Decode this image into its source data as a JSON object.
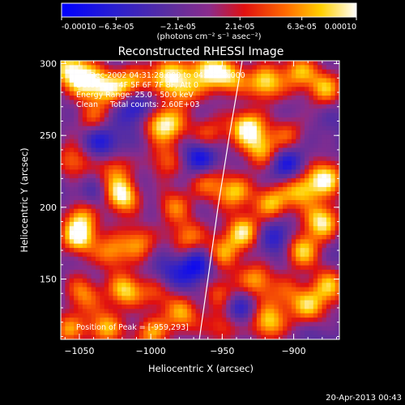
{
  "chart_data": {
    "type": "heatmap",
    "title": "Reconstructed RHESSI Image",
    "xlabel": "Heliocentric X (arcsec)",
    "ylabel": "Heliocentric Y (arcsec)",
    "xlim": [
      -1063,
      -868
    ],
    "ylim": [
      108,
      302
    ],
    "x_ticks": [
      -1050,
      -1000,
      -950,
      -900
    ],
    "y_ticks": [
      150,
      200,
      250,
      300
    ],
    "colorbar": {
      "min": -0.0001,
      "max": 0.0001,
      "ticks": [
        -0.0001,
        -6.3e-05,
        -2.1e-05,
        2.1e-05,
        6.3e-05,
        0.0001
      ],
      "tick_labels": [
        "-0.00010",
        "−6.3e-05",
        "−2.1e-05",
        "2.1e-05",
        "6.3e-05",
        "0.00010"
      ],
      "unit_label": "(photons cm⁻² s⁻¹ asec⁻²)",
      "colormap": [
        "#0000ff",
        "#5a2ea0",
        "#8a2c8c",
        "#e01010",
        "#ff6a00",
        "#ffd000",
        "#ffffff"
      ]
    },
    "info_lines": [
      "2-Dec-2002 04:31:28.000 to 04:35:28.000",
      "Detectors: 4F 5F 6F 7F 8F, Att 0",
      "Energy Range: 25.0 - 50.0 keV",
      "Clean     Total counts: 2.60E+03"
    ],
    "peak_label": "Position of Peak = [-959,293]",
    "limb_curve": [
      [
        -966,
        108
      ],
      [
        -960,
        150
      ],
      [
        -953,
        200
      ],
      [
        -945,
        250
      ],
      [
        -936,
        302
      ]
    ],
    "blobs": [
      {
        "x": -1058,
        "y": 297,
        "v": 0.9
      },
      {
        "x": -1046,
        "y": 287,
        "v": 0.85
      },
      {
        "x": -1030,
        "y": 283,
        "v": 0.7
      },
      {
        "x": -1012,
        "y": 286,
        "v": 0.75
      },
      {
        "x": -990,
        "y": 293,
        "v": 0.8
      },
      {
        "x": -978,
        "y": 282,
        "v": 0.7
      },
      {
        "x": -960,
        "y": 296,
        "v": 0.9
      },
      {
        "x": -944,
        "y": 290,
        "v": 0.8
      },
      {
        "x": -920,
        "y": 286,
        "v": 0.85
      },
      {
        "x": -896,
        "y": 295,
        "v": 0.75
      },
      {
        "x": -878,
        "y": 283,
        "v": 0.8
      },
      {
        "x": -932,
        "y": 256,
        "v": 1.0
      },
      {
        "x": -922,
        "y": 240,
        "v": 0.7
      },
      {
        "x": -995,
        "y": 260,
        "v": 0.65
      },
      {
        "x": -984,
        "y": 256,
        "v": 0.6
      },
      {
        "x": -1055,
        "y": 232,
        "v": 0.6
      },
      {
        "x": -1025,
        "y": 228,
        "v": 0.6
      },
      {
        "x": -990,
        "y": 232,
        "v": 0.5
      },
      {
        "x": -1020,
        "y": 208,
        "v": 1.0
      },
      {
        "x": -1048,
        "y": 196,
        "v": 0.7
      },
      {
        "x": -985,
        "y": 200,
        "v": 0.6
      },
      {
        "x": -960,
        "y": 218,
        "v": 0.6
      },
      {
        "x": -942,
        "y": 210,
        "v": 0.8
      },
      {
        "x": -915,
        "y": 203,
        "v": 0.7
      },
      {
        "x": -895,
        "y": 212,
        "v": 0.8
      },
      {
        "x": -878,
        "y": 220,
        "v": 0.9
      },
      {
        "x": -880,
        "y": 190,
        "v": 1.0
      },
      {
        "x": -895,
        "y": 170,
        "v": 0.8
      },
      {
        "x": -1050,
        "y": 180,
        "v": 1.0
      },
      {
        "x": -1028,
        "y": 168,
        "v": 0.7
      },
      {
        "x": -1008,
        "y": 176,
        "v": 0.6
      },
      {
        "x": -975,
        "y": 178,
        "v": 0.7
      },
      {
        "x": -950,
        "y": 168,
        "v": 0.6
      },
      {
        "x": -935,
        "y": 183,
        "v": 0.9
      },
      {
        "x": -925,
        "y": 150,
        "v": 0.7
      },
      {
        "x": -952,
        "y": 140,
        "v": 0.6
      },
      {
        "x": -1018,
        "y": 142,
        "v": 0.9
      },
      {
        "x": -1048,
        "y": 140,
        "v": 0.6
      },
      {
        "x": -995,
        "y": 142,
        "v": 0.6
      },
      {
        "x": -1058,
        "y": 115,
        "v": 0.7
      },
      {
        "x": -1032,
        "y": 116,
        "v": 0.7
      },
      {
        "x": -1000,
        "y": 112,
        "v": 0.75
      },
      {
        "x": -978,
        "y": 125,
        "v": 0.65
      },
      {
        "x": -948,
        "y": 118,
        "v": 0.7
      },
      {
        "x": -918,
        "y": 120,
        "v": 0.8
      },
      {
        "x": -890,
        "y": 130,
        "v": 0.75
      },
      {
        "x": -875,
        "y": 145,
        "v": 0.7
      },
      {
        "x": -1040,
        "y": 262,
        "v": 0.55
      },
      {
        "x": -960,
        "y": 250,
        "v": 0.55
      },
      {
        "x": -905,
        "y": 250,
        "v": 0.5
      },
      {
        "x": -905,
        "y": 140,
        "v": 0.5
      }
    ],
    "dips": [
      {
        "x": -1010,
        "y": 270,
        "v": 0.7
      },
      {
        "x": -965,
        "y": 235,
        "v": 0.6
      },
      {
        "x": -905,
        "y": 230,
        "v": 0.5
      },
      {
        "x": -1035,
        "y": 245,
        "v": 0.5
      },
      {
        "x": -968,
        "y": 160,
        "v": 0.6
      },
      {
        "x": -940,
        "y": 128,
        "v": 0.6
      },
      {
        "x": -990,
        "y": 150,
        "v": 0.5
      },
      {
        "x": -1040,
        "y": 205,
        "v": 0.4
      },
      {
        "x": -910,
        "y": 180,
        "v": 0.5
      }
    ]
  },
  "footer": {
    "timestamp": "20-Apr-2013 00:43"
  }
}
